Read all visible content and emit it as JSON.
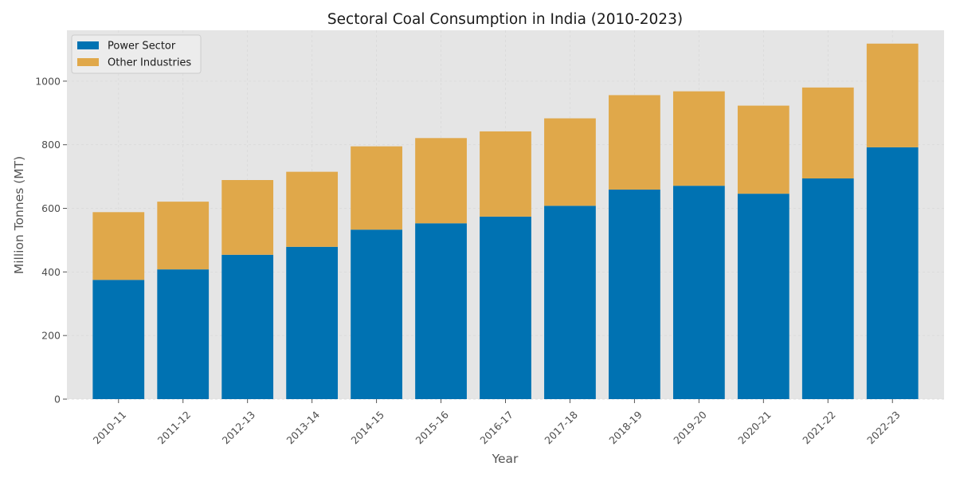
{
  "chart_data": {
    "type": "bar",
    "stacked": true,
    "title": "Sectoral Coal Consumption in India (2010-2023)",
    "xlabel": "Year",
    "ylabel": "Million Tonnes (MT)",
    "categories": [
      "2010-11",
      "2011-12",
      "2012-13",
      "2013-14",
      "2014-15",
      "2015-16",
      "2016-17",
      "2017-18",
      "2018-19",
      "2019-20",
      "2020-21",
      "2021-22",
      "2022-23"
    ],
    "series": [
      {
        "name": "Power Sector",
        "color": "#0072b2",
        "values": [
          375,
          408,
          454,
          479,
          533,
          553,
          574,
          608,
          659,
          671,
          646,
          694,
          792
        ]
      },
      {
        "name": "Other Industries",
        "color": "#e0a84a",
        "values": [
          213,
          213,
          235,
          236,
          262,
          268,
          268,
          275,
          297,
          297,
          277,
          286,
          326
        ]
      }
    ],
    "ylim": [
      0,
      1160
    ],
    "yticks": [
      0,
      200,
      400,
      600,
      800,
      1000
    ],
    "grid": true,
    "legend": "top-left",
    "background": "#e5e5e5",
    "grid_color": "#d9d9d9"
  }
}
